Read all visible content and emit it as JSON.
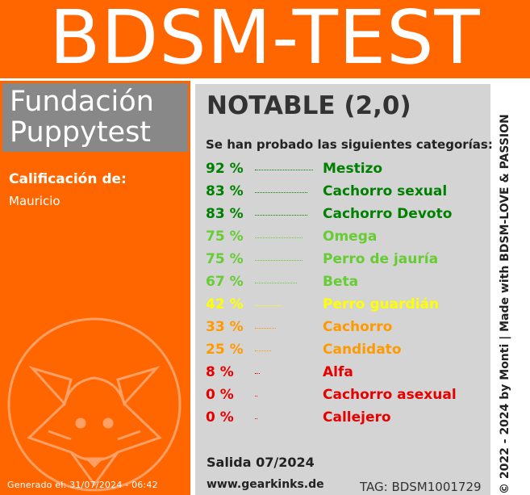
{
  "header": {
    "title": "BDSM-TEST"
  },
  "left": {
    "heading_line1": "Fundación",
    "heading_line2": "Puppytest",
    "calificacion_label": "Calificación de:",
    "name": "Mauricio",
    "generated": "Generado el: 31/07/2024 - 06:42",
    "logo_icon": "fox-icon"
  },
  "main": {
    "grade": "NOTABLE (2,0)",
    "intro": "Se han probado las siguientes categorías:",
    "rows": [
      {
        "pct": "92 %",
        "name": "Mestizo",
        "value": 92,
        "color": "#008000"
      },
      {
        "pct": "83 %",
        "name": "Cachorro sexual",
        "value": 83,
        "color": "#008000"
      },
      {
        "pct": "83 %",
        "name": "Cachorro Devoto",
        "value": 83,
        "color": "#008000"
      },
      {
        "pct": "75 %",
        "name": "Omega",
        "value": 75,
        "color": "#66cc33"
      },
      {
        "pct": "75 %",
        "name": "Perro de jauría",
        "value": 75,
        "color": "#66cc33"
      },
      {
        "pct": "67 %",
        "name": "Beta",
        "value": 67,
        "color": "#66cc33"
      },
      {
        "pct": "42 %",
        "name": "Perro guardián",
        "value": 42,
        "color": "#ffff00"
      },
      {
        "pct": "33 %",
        "name": "Cachorro",
        "value": 33,
        "color": "#ff9900"
      },
      {
        "pct": "25 %",
        "name": "Candidato",
        "value": 25,
        "color": "#ff9900"
      },
      {
        "pct": "8 %",
        "name": "Alfa",
        "value": 8,
        "color": "#e60000"
      },
      {
        "pct": "0 %",
        "name": "Cachorro asexual",
        "value": 0,
        "color": "#e60000"
      },
      {
        "pct": "0 %",
        "name": "Callejero",
        "value": 0,
        "color": "#e60000"
      }
    ],
    "salida": "Salida 07/2024",
    "url": "www.gearkinks.de",
    "tag": "TAG: BDSM1001729"
  },
  "side": {
    "text": "© 2022 - 2024 by Monti | Made with BDSM-LOVE & PASSION"
  }
}
